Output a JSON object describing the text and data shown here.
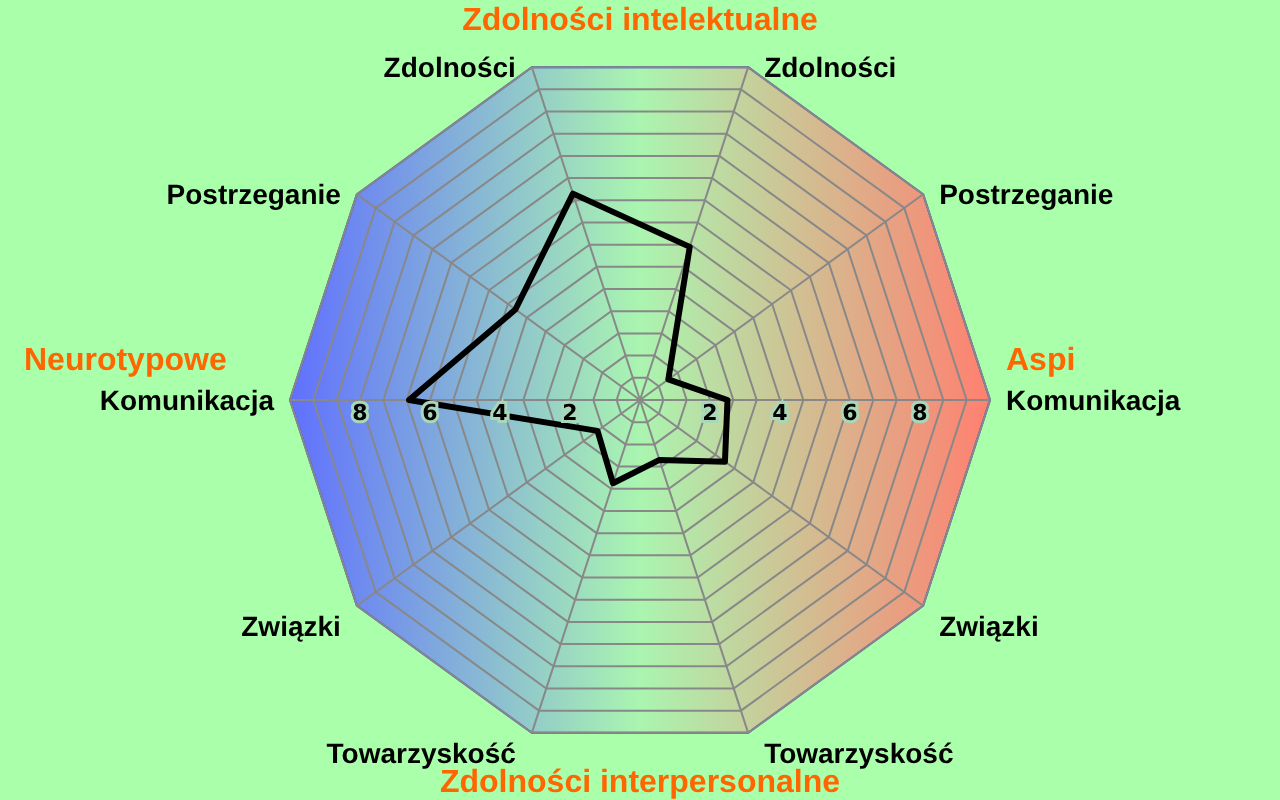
{
  "chart_data": {
    "type": "radar",
    "categories": [
      "Zdolności",
      "Postrzeganie",
      "Komunikacja",
      "Związki",
      "Towarzyskość",
      "Towarzyskość",
      "Związki",
      "Komunikacja",
      "Postrzeganie",
      "Zdolności"
    ],
    "series": [
      {
        "color": "#000000",
        "values": [
          4.6,
          1.0,
          2.5,
          3.0,
          1.8,
          2.5,
          1.5,
          6.6,
          4.4,
          6.2
        ]
      }
    ],
    "ylim": [
      0,
      10
    ],
    "yticks": [
      2,
      4,
      6,
      8
    ],
    "grid": true,
    "annotations": [
      "Zdolności intelektualne",
      "Neurotypowe",
      "Aspi",
      "Zdolności interpersonalne",
      "2",
      "4",
      "6",
      "8"
    ]
  }
}
